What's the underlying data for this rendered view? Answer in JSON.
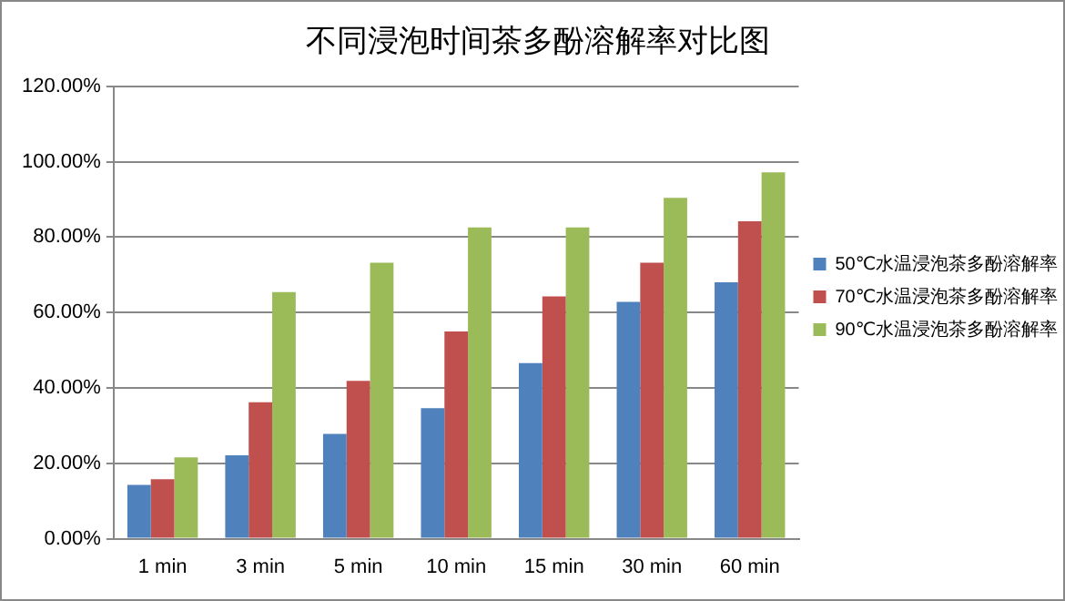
{
  "chart_data": {
    "type": "bar",
    "title": "不同浸泡时间茶多酚溶解率对比图",
    "categories": [
      "1 min",
      "3 min",
      "5 min",
      "10 min",
      "15 min",
      "30 min",
      "60 min"
    ],
    "series": [
      {
        "name": "50℃水温浸泡茶多酚溶解率",
        "color": "#4f81bd",
        "values": [
          14.3,
          22.1,
          27.8,
          34.6,
          46.6,
          62.8,
          68.0
        ]
      },
      {
        "name": "70℃水温浸泡茶多酚溶解率",
        "color": "#c0504d",
        "values": [
          15.8,
          36.2,
          41.9,
          55.0,
          64.3,
          73.2,
          84.2
        ]
      },
      {
        "name": "90℃水温浸泡茶多酚溶解率",
        "color": "#9bbb59",
        "values": [
          21.6,
          65.4,
          73.2,
          82.6,
          82.6,
          90.4,
          97.2
        ]
      }
    ],
    "ylim": [
      0,
      120
    ],
    "yticks": [
      {
        "value": 0,
        "label": "0.00%"
      },
      {
        "value": 20,
        "label": "20.00%"
      },
      {
        "value": 40,
        "label": "40.00%"
      },
      {
        "value": 60,
        "label": "60.00%"
      },
      {
        "value": 80,
        "label": "80.00%"
      },
      {
        "value": 100,
        "label": "100.00%"
      },
      {
        "value": 120,
        "label": "120.00%"
      }
    ],
    "grid": "y",
    "legend": "right"
  }
}
